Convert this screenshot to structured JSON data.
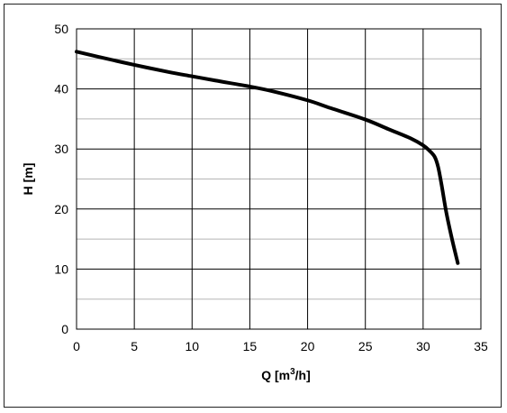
{
  "chart_data": {
    "type": "line",
    "title": "",
    "xlabel": "Q [m",
    "xlabel_sup": "3",
    "xlabel_tail": "/h]",
    "ylabel": "H [m]",
    "xlim": [
      0,
      35
    ],
    "ylim": [
      0,
      50
    ],
    "x_ticks": [
      0,
      5,
      10,
      15,
      20,
      25,
      30,
      35
    ],
    "y_ticks": [
      0,
      10,
      20,
      30,
      40,
      50
    ],
    "grid": true,
    "minor_y_grid_step": 5,
    "legend": "none",
    "series": [
      {
        "color": "#000000",
        "x": [
          0,
          2,
          5,
          8,
          10,
          12,
          15,
          17,
          20,
          22,
          25,
          27,
          29,
          30,
          30.5,
          31,
          31.3,
          31.6,
          32,
          32.5,
          33
        ],
        "y": [
          46.2,
          45.3,
          44.0,
          42.8,
          42.1,
          41.4,
          40.4,
          39.6,
          38.1,
          36.8,
          34.9,
          33.3,
          31.7,
          30.6,
          29.8,
          28.7,
          27.0,
          24.0,
          19.5,
          15.0,
          11.0
        ]
      }
    ]
  }
}
